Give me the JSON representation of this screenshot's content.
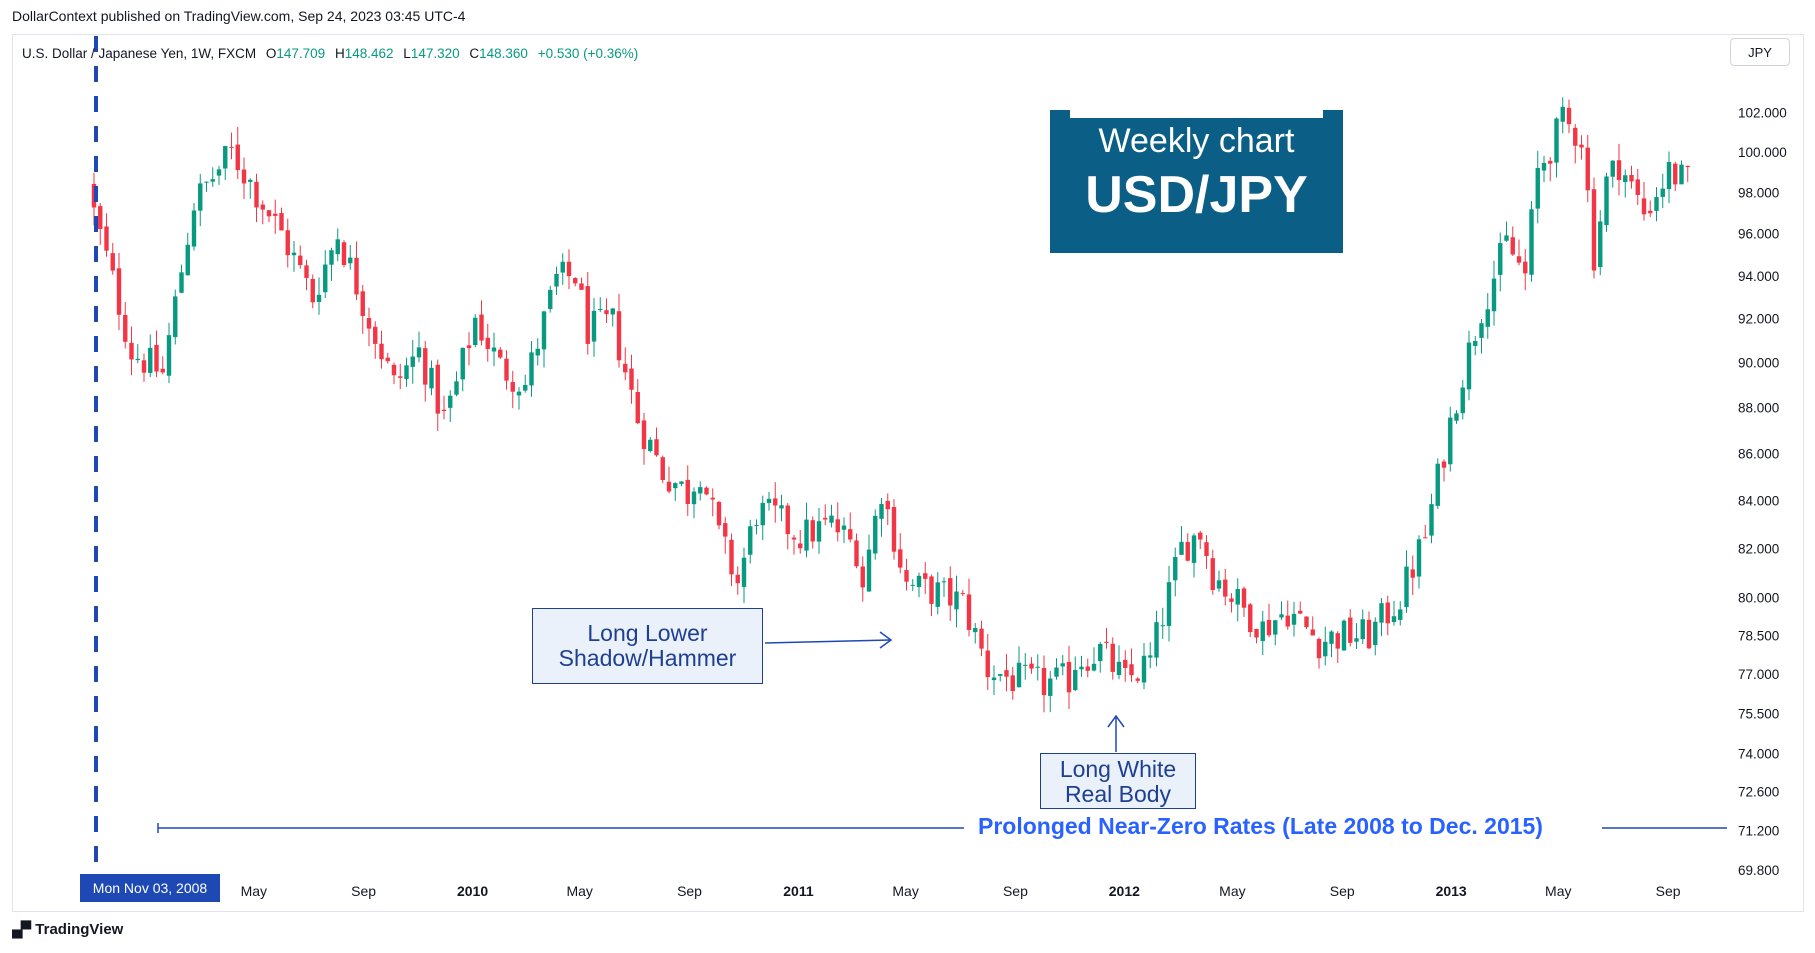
{
  "publisher": "DollarContext published on TradingView.com, Sep 24, 2023 03:45 UTC-4",
  "legend": {
    "symbol": "U.S. Dollar / Japanese Yen, 1W, FXCM",
    "o_label": "O",
    "o_value": "147.709",
    "h_label": "H",
    "h_value": "148.462",
    "l_label": "L",
    "l_value": "147.320",
    "c_label": "C",
    "c_value": "148.360",
    "change": "+0.530 (+0.36%)"
  },
  "currency_button": "JPY",
  "title_box": {
    "line1": "Weekly chart",
    "line2": "USD/JPY"
  },
  "annotations": {
    "hammer": "Long Lower Shadow/Hammer",
    "white_body": "Long White Real Body",
    "rates": "Prolonged Near-Zero Rates (Late 2008 to Dec. 2015)",
    "date_badge": "Mon Nov 03, 2008"
  },
  "brand": "TradingView",
  "colors": {
    "up": "#089981",
    "down": "#f23645",
    "annotation": "#2962ff",
    "title_bg": "#0b5f86"
  },
  "chart_data": {
    "type": "candlestick",
    "symbol": "USD/JPY",
    "interval": "1W",
    "y_axis": {
      "scale": "log",
      "position": "right",
      "ylim": [
        69.8,
        102.6
      ],
      "ticks": [
        102,
        100,
        98,
        96,
        94,
        92,
        90,
        88,
        86,
        84,
        82,
        80,
        78.5,
        77,
        75.5,
        74,
        72.6,
        71.2,
        69.8
      ]
    },
    "y_tick_labels": [
      "102.000",
      "100.000",
      "98.000",
      "96.000",
      "94.000",
      "92.000",
      "90.000",
      "88.000",
      "86.000",
      "84.000",
      "82.000",
      "80.000",
      "78.500",
      "77.000",
      "75.500",
      "74.000",
      "72.600",
      "71.200",
      "69.800"
    ],
    "x_ticks": [
      {
        "label": "May",
        "bold": false,
        "date": "2009-05"
      },
      {
        "label": "Sep",
        "bold": false,
        "date": "2009-09"
      },
      {
        "label": "2010",
        "bold": true,
        "date": "2010-01"
      },
      {
        "label": "May",
        "bold": false,
        "date": "2010-05"
      },
      {
        "label": "Sep",
        "bold": false,
        "date": "2010-09"
      },
      {
        "label": "2011",
        "bold": true,
        "date": "2011-01"
      },
      {
        "label": "May",
        "bold": false,
        "date": "2011-05"
      },
      {
        "label": "Sep",
        "bold": false,
        "date": "2011-09"
      },
      {
        "label": "2012",
        "bold": true,
        "date": "2012-01"
      },
      {
        "label": "May",
        "bold": false,
        "date": "2012-05"
      },
      {
        "label": "Sep",
        "bold": false,
        "date": "2012-09"
      },
      {
        "label": "2013",
        "bold": true,
        "date": "2013-01"
      },
      {
        "label": "May",
        "bold": false,
        "date": "2013-05"
      },
      {
        "label": "Sep",
        "bold": false,
        "date": "2013-09"
      }
    ],
    "marker_date": "2008-11-03",
    "rates_start_date": "2008-11-03",
    "close_path": [
      [
        "2008-11-03",
        97.0
      ],
      [
        "2008-12-15",
        90.5
      ],
      [
        "2009-01-19",
        89.5
      ],
      [
        "2009-02-23",
        97.5
      ],
      [
        "2009-04-06",
        100.0
      ],
      [
        "2009-05-04",
        98.0
      ],
      [
        "2009-06-01",
        96.0
      ],
      [
        "2009-07-06",
        93.0
      ],
      [
        "2009-08-03",
        96.0
      ],
      [
        "2009-09-07",
        92.0
      ],
      [
        "2009-10-05",
        89.0
      ],
      [
        "2009-11-02",
        90.5
      ],
      [
        "2009-11-30",
        87.5
      ],
      [
        "2009-12-14",
        89.0
      ],
      [
        "2010-01-04",
        92.0
      ],
      [
        "2010-02-01",
        89.8
      ],
      [
        "2010-03-01",
        89.0
      ],
      [
        "2010-04-05",
        93.8
      ],
      [
        "2010-04-26",
        94.0
      ],
      [
        "2010-05-10",
        91.5
      ],
      [
        "2010-06-07",
        91.8
      ],
      [
        "2010-07-05",
        87.5
      ],
      [
        "2010-08-02",
        85.2
      ],
      [
        "2010-08-30",
        84.3
      ],
      [
        "2010-09-13",
        85.3
      ],
      [
        "2010-10-04",
        82.5
      ],
      [
        "2010-10-25",
        80.6
      ],
      [
        "2010-11-15",
        83.5
      ],
      [
        "2010-12-06",
        83.3
      ],
      [
        "2011-01-03",
        82.5
      ],
      [
        "2011-02-07",
        83.0
      ],
      [
        "2011-03-07",
        82.0
      ],
      [
        "2011-03-14",
        80.6
      ],
      [
        "2011-04-04",
        84.5
      ],
      [
        "2011-05-02",
        80.5
      ],
      [
        "2011-06-06",
        80.2
      ],
      [
        "2011-07-04",
        79.8
      ],
      [
        "2011-08-01",
        77.2
      ],
      [
        "2011-08-29",
        76.8
      ],
      [
        "2011-10-03",
        76.6
      ],
      [
        "2011-10-31",
        76.8
      ],
      [
        "2011-11-07",
        77.5
      ],
      [
        "2011-12-05",
        77.9
      ],
      [
        "2012-01-02",
        76.7
      ],
      [
        "2012-01-30",
        77.5
      ],
      [
        "2012-02-13",
        79.3
      ],
      [
        "2012-03-05",
        82.0
      ],
      [
        "2012-03-26",
        82.7
      ],
      [
        "2012-04-09",
        81.0
      ],
      [
        "2012-05-07",
        79.8
      ],
      [
        "2012-06-04",
        78.8
      ],
      [
        "2012-07-02",
        79.5
      ],
      [
        "2012-08-06",
        78.3
      ],
      [
        "2012-09-03",
        78.5
      ],
      [
        "2012-10-01",
        78.5
      ],
      [
        "2012-11-05",
        80.0
      ],
      [
        "2012-12-03",
        82.5
      ],
      [
        "2013-01-07",
        88.5
      ],
      [
        "2013-02-04",
        92.5
      ],
      [
        "2013-03-04",
        95.5
      ],
      [
        "2013-03-25",
        94.0
      ],
      [
        "2013-04-08",
        99.0
      ],
      [
        "2013-05-06",
        101.5
      ],
      [
        "2013-05-27",
        100.8
      ],
      [
        "2013-06-10",
        95.0
      ],
      [
        "2013-06-24",
        98.5
      ],
      [
        "2013-07-08",
        99.5
      ],
      [
        "2013-08-05",
        97.0
      ],
      [
        "2013-09-02",
        99.0
      ],
      [
        "2013-09-23",
        98.5
      ]
    ]
  }
}
